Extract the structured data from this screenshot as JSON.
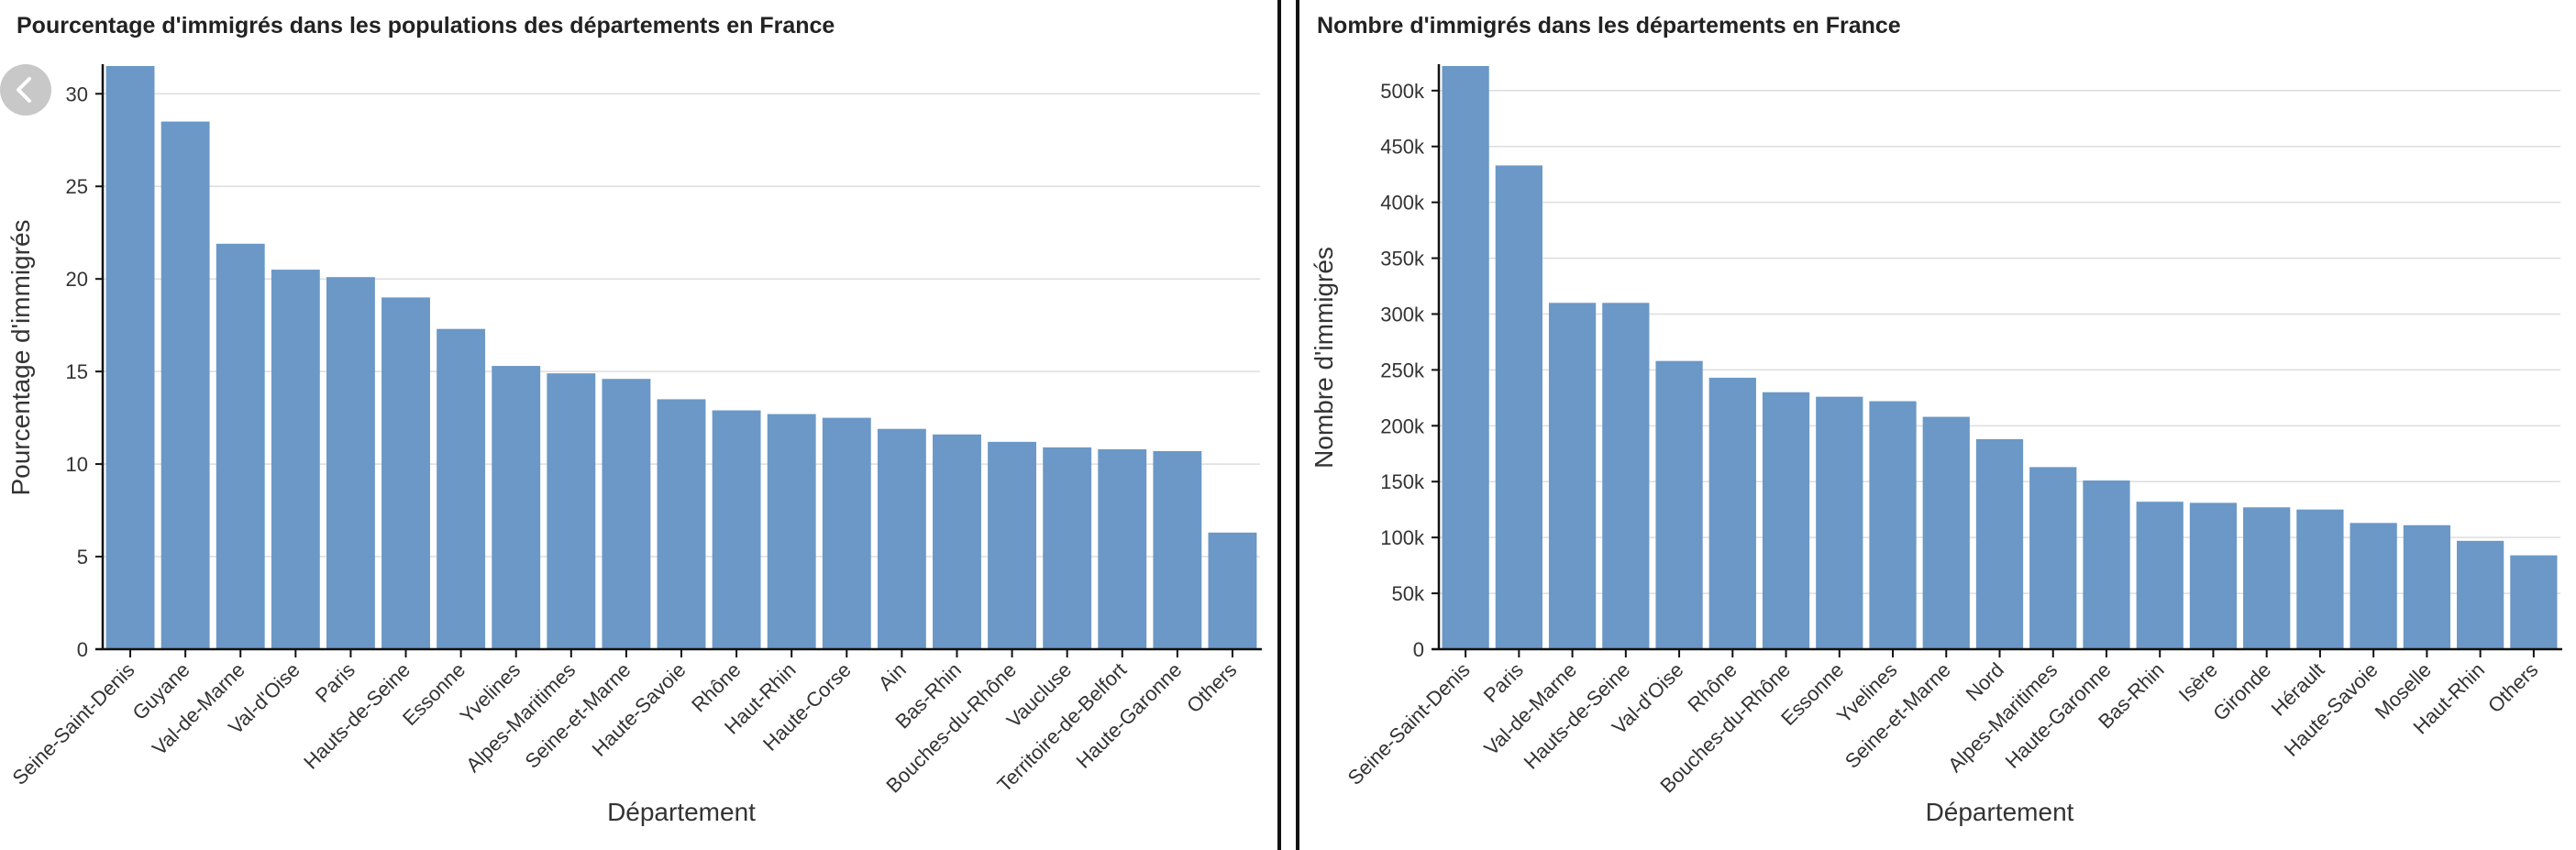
{
  "panels": [
    {
      "title": "Pourcentage d'immigrés dans les populations des départements en France"
    },
    {
      "title": "Nombre d'immigrés dans les départements en France"
    }
  ],
  "back_button": {
    "icon": "chevron-left-icon"
  },
  "colors": {
    "bar": "#6b98c6",
    "grid": "#dddddd",
    "axis": "#111111",
    "text": "#333333"
  },
  "chart_data": [
    {
      "type": "bar",
      "title": "Pourcentage d'immigrés dans les populations des départements en France",
      "xlabel": "Département",
      "ylabel": "Pourcentage d'immigrés",
      "ylim": [
        0,
        31.5
      ],
      "yticks": [
        0,
        5,
        10,
        15,
        20,
        25,
        30
      ],
      "ytick_labels": [
        "0",
        "5",
        "10",
        "15",
        "20",
        "25",
        "30"
      ],
      "grid": true,
      "categories": [
        "Seine-Saint-Denis",
        "Guyane",
        "Val-de-Marne",
        "Val-d'Oise",
        "Paris",
        "Hauts-de-Seine",
        "Essonne",
        "Yvelines",
        "Alpes-Maritimes",
        "Seine-et-Marne",
        "Haute-Savoie",
        "Rhône",
        "Haut-Rhin",
        "Haute-Corse",
        "Ain",
        "Bas-Rhin",
        "Bouches-du-Rhône",
        "Vaucluse",
        "Territoire-de-Belfort",
        "Haute-Garonne",
        "Others"
      ],
      "values": [
        31.5,
        28.5,
        21.9,
        20.5,
        20.1,
        19.0,
        17.3,
        15.3,
        14.9,
        14.6,
        13.5,
        12.9,
        12.7,
        12.5,
        11.9,
        11.6,
        11.2,
        10.9,
        10.8,
        10.7,
        6.3
      ]
    },
    {
      "type": "bar",
      "title": "Nombre d'immigrés dans les départements en France",
      "xlabel": "Département",
      "ylabel": "Nombre d'immigrés",
      "ylim": [
        0,
        522000
      ],
      "yticks": [
        0,
        50000,
        100000,
        150000,
        200000,
        250000,
        300000,
        350000,
        400000,
        450000,
        500000
      ],
      "ytick_labels": [
        "0",
        "50k",
        "100k",
        "150k",
        "200k",
        "250k",
        "300k",
        "350k",
        "400k",
        "450k",
        "500k"
      ],
      "grid": true,
      "categories": [
        "Seine-Saint-Denis",
        "Paris",
        "Val-de-Marne",
        "Hauts-de-Seine",
        "Val-d'Oise",
        "Rhône",
        "Bouches-du-Rhône",
        "Essonne",
        "Yvelines",
        "Seine-et-Marne",
        "Nord",
        "Alpes-Maritimes",
        "Haute-Garonne",
        "Bas-Rhin",
        "Isère",
        "Gironde",
        "Hérault",
        "Haute-Savoie",
        "Moselle",
        "Haut-Rhin",
        "Others"
      ],
      "values": [
        522000,
        433000,
        310000,
        310000,
        258000,
        243000,
        230000,
        226000,
        222000,
        208000,
        188000,
        163000,
        151000,
        132000,
        131000,
        127000,
        125000,
        113000,
        111000,
        97000,
        84000
      ]
    }
  ]
}
